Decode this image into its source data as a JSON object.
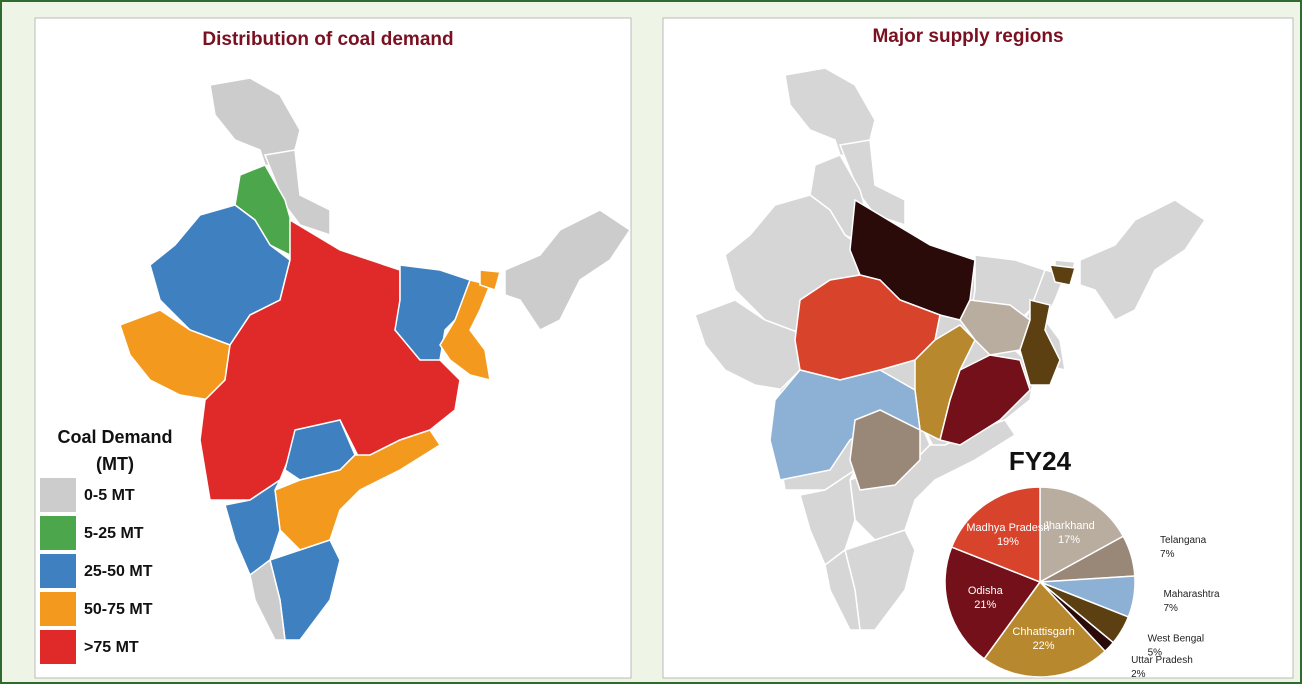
{
  "left_map": {
    "title": "Distribution of coal demand",
    "legend": {
      "title": [
        "Coal Demand",
        "(MT)"
      ],
      "items": [
        {
          "label": "0-5 MT",
          "color": "#cccccc"
        },
        {
          "label": "5-25 MT",
          "color": "#4ca64c"
        },
        {
          "label": "25-50 MT",
          "color": "#3f80c0"
        },
        {
          "label": "50-75 MT",
          "color": "#f39a1e"
        },
        {
          "label": ">75 MT",
          "color": "#e02a2a"
        }
      ]
    }
  },
  "right_map": {
    "title": "Major supply regions"
  },
  "chart_data": {
    "type": "pie",
    "title": "FY24",
    "categories": [
      "Jharkhand",
      "Telangana",
      "Maharashtra",
      "West Bengal",
      "Uttar Pradesh",
      "Chhattisgarh",
      "Odisha",
      "Madhya Pradesh"
    ],
    "values": [
      17,
      7,
      7,
      5,
      2,
      22,
      21,
      19
    ],
    "value_labels": [
      "17%",
      "7%",
      "7%",
      "5%",
      "2%",
      "22%",
      "21%",
      "19%"
    ],
    "colors": [
      "#b9ada0",
      "#998777",
      "#8db0d5",
      "#5c4012",
      "#2b0a0a",
      "#b8882e",
      "#731019",
      "#d8442b"
    ]
  }
}
